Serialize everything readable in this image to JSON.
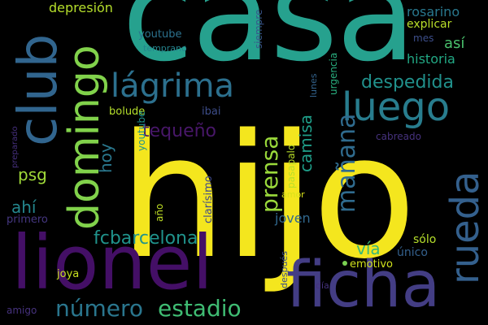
{
  "words": {
    "hijo": "hijo",
    "casa": "casa",
    "lionel": "lionel",
    "ficha": "ficha",
    "club": "club",
    "domingo": "domingo",
    "luego": "luego",
    "rueda": "rueda",
    "lagrima": "lágrima",
    "numero": "número",
    "estadio": "estadio",
    "fcbarcelona": "fcbarcelona",
    "prensa": "prensa",
    "manana": "mañana",
    "despedida": "despedida",
    "tequeno": "tequeño",
    "camisa": "camisa",
    "historia": "historia",
    "asi": "así",
    "rosarino": "rosarino",
    "explicar": "explicar",
    "depresion": "depresión",
    "psg": "psg",
    "ahi": "ahí",
    "hoy": "hoy",
    "via": "vía",
    "joven": "joven",
    "solo": "sólo",
    "unico": "único",
    "youtube_1": "youtube",
    "temprano": "temprano",
    "siempre": "siempre",
    "urgencia": "urgencia",
    "lunes": "lunes",
    "mes": "mes",
    "bolude": "bolude",
    "ibai": "ibai",
    "youtube_2": "youtube",
    "cabreado": "cabreado",
    "preparado": "preparado",
    "primero": "primero",
    "clarisimo": "clarísimo",
    "pasapalo": "pasapalo",
    "amor": "amor",
    "ano": "año",
    "joya": "joya",
    "emotivo": "emotivo",
    "despues": "después",
    "dia": "día",
    "amigo": "amigo"
  },
  "colors": {
    "background": "#000000",
    "palette": "viridis"
  }
}
